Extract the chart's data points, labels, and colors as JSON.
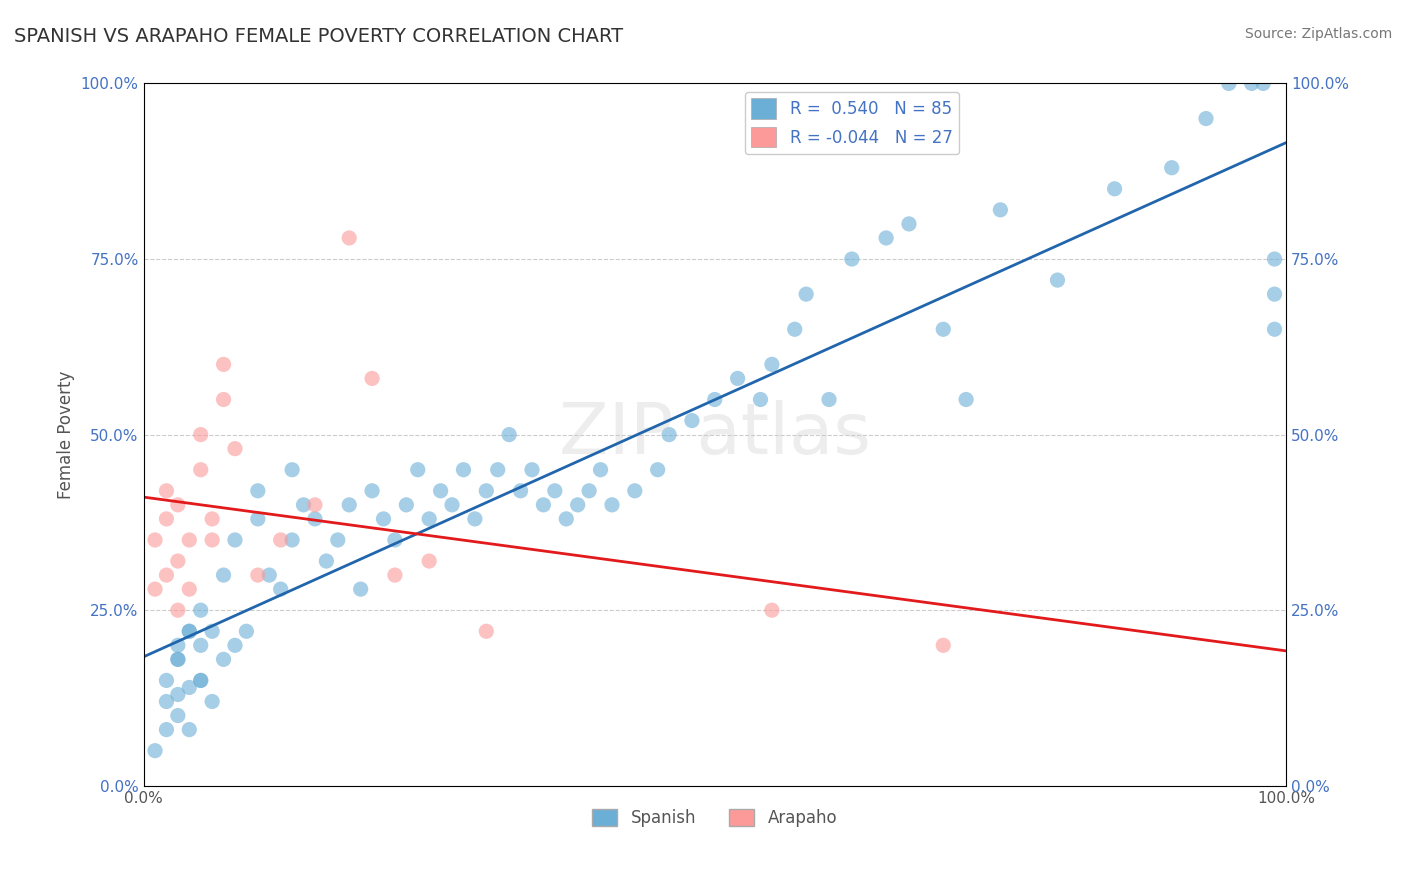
{
  "title": "SPANISH VS ARAPAHO FEMALE POVERTY CORRELATION CHART",
  "source": "Source: ZipAtlas.com",
  "xlabel": "",
  "ylabel": "Female Poverty",
  "xlim": [
    0,
    1
  ],
  "ylim": [
    0,
    1
  ],
  "xtick_labels": [
    "0.0%",
    "100.0%"
  ],
  "ytick_labels": [
    "0.0%",
    "25.0%",
    "50.0%",
    "75.0%",
    "100.0%"
  ],
  "ytick_values": [
    0.0,
    0.25,
    0.5,
    0.75,
    1.0
  ],
  "r_spanish": 0.54,
  "n_spanish": 85,
  "r_arapaho": -0.044,
  "n_arapaho": 27,
  "spanish_color": "#6baed6",
  "arapaho_color": "#fb9a99",
  "spanish_line_color": "#2166ac",
  "arapaho_line_color": "#e31a1c",
  "background_color": "#ffffff",
  "grid_color": "#cccccc",
  "title_color": "#333333",
  "watermark_text": "ZIPatlas",
  "legend_entry1": "R =  0.540   N = 85",
  "legend_entry2": "R = -0.044   N = 27",
  "spanish_x": [
    0.01,
    0.02,
    0.02,
    0.02,
    0.03,
    0.03,
    0.03,
    0.03,
    0.04,
    0.04,
    0.04,
    0.05,
    0.05,
    0.05,
    0.06,
    0.06,
    0.07,
    0.07,
    0.08,
    0.08,
    0.09,
    0.1,
    0.1,
    0.11,
    0.12,
    0.13,
    0.13,
    0.14,
    0.15,
    0.16,
    0.17,
    0.18,
    0.19,
    0.2,
    0.21,
    0.22,
    0.23,
    0.24,
    0.25,
    0.26,
    0.27,
    0.28,
    0.29,
    0.3,
    0.31,
    0.32,
    0.33,
    0.34,
    0.35,
    0.36,
    0.37,
    0.38,
    0.39,
    0.4,
    0.41,
    0.43,
    0.45,
    0.46,
    0.48,
    0.5,
    0.52,
    0.54,
    0.55,
    0.57,
    0.58,
    0.6,
    0.62,
    0.65,
    0.67,
    0.7,
    0.72,
    0.75,
    0.8,
    0.85,
    0.9,
    0.93,
    0.95,
    0.97,
    0.98,
    0.99,
    0.99,
    0.99,
    0.03,
    0.04,
    0.05
  ],
  "spanish_y": [
    0.05,
    0.08,
    0.12,
    0.15,
    0.1,
    0.13,
    0.18,
    0.2,
    0.08,
    0.14,
    0.22,
    0.15,
    0.2,
    0.25,
    0.12,
    0.22,
    0.18,
    0.3,
    0.2,
    0.35,
    0.22,
    0.38,
    0.42,
    0.3,
    0.28,
    0.35,
    0.45,
    0.4,
    0.38,
    0.32,
    0.35,
    0.4,
    0.28,
    0.42,
    0.38,
    0.35,
    0.4,
    0.45,
    0.38,
    0.42,
    0.4,
    0.45,
    0.38,
    0.42,
    0.45,
    0.5,
    0.42,
    0.45,
    0.4,
    0.42,
    0.38,
    0.4,
    0.42,
    0.45,
    0.4,
    0.42,
    0.45,
    0.5,
    0.52,
    0.55,
    0.58,
    0.55,
    0.6,
    0.65,
    0.7,
    0.55,
    0.75,
    0.78,
    0.8,
    0.65,
    0.55,
    0.82,
    0.72,
    0.85,
    0.88,
    0.95,
    1.0,
    1.0,
    1.0,
    0.65,
    0.7,
    0.75,
    0.18,
    0.22,
    0.15
  ],
  "arapaho_x": [
    0.01,
    0.01,
    0.02,
    0.02,
    0.02,
    0.03,
    0.03,
    0.03,
    0.04,
    0.04,
    0.05,
    0.05,
    0.06,
    0.06,
    0.07,
    0.07,
    0.08,
    0.1,
    0.12,
    0.15,
    0.18,
    0.2,
    0.22,
    0.25,
    0.3,
    0.55,
    0.7
  ],
  "arapaho_y": [
    0.28,
    0.35,
    0.3,
    0.38,
    0.42,
    0.25,
    0.32,
    0.4,
    0.28,
    0.35,
    0.45,
    0.5,
    0.35,
    0.38,
    0.55,
    0.6,
    0.48,
    0.3,
    0.35,
    0.4,
    0.78,
    0.58,
    0.3,
    0.32,
    0.22,
    0.25,
    0.2
  ]
}
